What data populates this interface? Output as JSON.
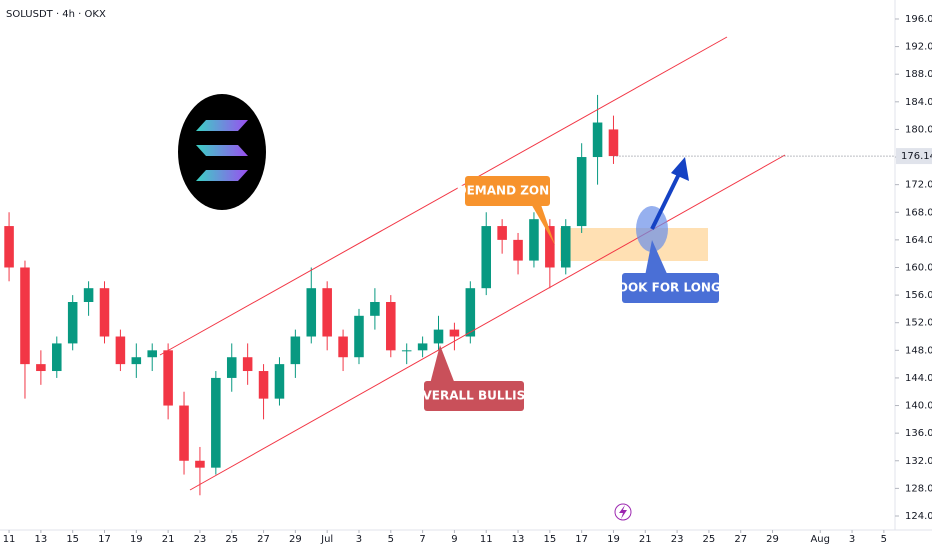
{
  "chart_data": {
    "type": "candlestick",
    "title": "SOLUSDT · 4h · OKX",
    "x": [
      11,
      12,
      13,
      14,
      15,
      16,
      17,
      18,
      19,
      20,
      21,
      22,
      23,
      24,
      25,
      26,
      27,
      28,
      29,
      30,
      31,
      32,
      33,
      34,
      35,
      36,
      37,
      38,
      39,
      40,
      41,
      42,
      43,
      44,
      45,
      46,
      47,
      48,
      49
    ],
    "open": [
      166,
      160,
      146,
      145,
      149,
      155,
      157,
      150,
      146,
      147,
      148,
      140,
      132,
      131,
      144,
      147,
      145,
      141,
      146,
      150,
      157,
      150,
      147,
      153,
      155,
      148,
      148,
      149,
      151,
      150,
      157,
      166,
      164,
      161,
      166,
      160,
      166,
      176,
      180
    ],
    "high": [
      168,
      161,
      148,
      150,
      156,
      158,
      158,
      151,
      149,
      149,
      149,
      142,
      134,
      145,
      149,
      149,
      146,
      147,
      151,
      160,
      158,
      151,
      154,
      157,
      156,
      149,
      150,
      153,
      152,
      158,
      168,
      167,
      165,
      168,
      167,
      167,
      178,
      185,
      182
    ],
    "low": [
      158,
      141,
      143,
      144,
      148,
      153,
      149,
      145,
      144,
      145,
      138,
      130,
      127,
      130,
      142,
      143,
      138,
      140,
      144,
      149,
      148,
      145,
      146,
      151,
      147,
      146,
      147,
      148,
      148,
      149,
      156,
      162,
      159,
      160,
      157,
      159,
      165,
      172,
      175
    ],
    "close": [
      160,
      146,
      145,
      149,
      155,
      157,
      150,
      146,
      147,
      148,
      140,
      132,
      131,
      144,
      147,
      145,
      141,
      146,
      150,
      157,
      150,
      147,
      153,
      155,
      148,
      148,
      149,
      151,
      150,
      157,
      166,
      164,
      161,
      167,
      160,
      166,
      176,
      181,
      176.14
    ],
    "up_color": "#089981",
    "down_color": "#f23645",
    "last_price": 176.14,
    "xlim": [
      10.43,
      66.7
    ],
    "xticks": [
      11,
      13,
      15,
      17,
      19,
      21,
      23,
      25,
      27,
      29,
      {
        "value": 31,
        "label": "Jul"
      },
      {
        "value": 33,
        "label": "3"
      },
      {
        "value": 35,
        "label": "5"
      },
      {
        "value": 37,
        "label": "7"
      },
      {
        "value": 39,
        "label": "9"
      },
      {
        "value": 41,
        "label": "11"
      },
      {
        "value": 43,
        "label": "13"
      },
      {
        "value": 45,
        "label": "15"
      },
      {
        "value": 47,
        "label": "17"
      },
      {
        "value": 49,
        "label": "19"
      },
      {
        "value": 51,
        "label": "21"
      },
      {
        "value": 53,
        "label": "23"
      },
      {
        "value": 55,
        "label": "25"
      },
      {
        "value": 57,
        "label": "27"
      },
      {
        "value": 59,
        "label": "29"
      },
      {
        "value": 62,
        "label": "Aug"
      },
      {
        "value": 64,
        "label": "3"
      },
      {
        "value": 66,
        "label": "5"
      }
    ],
    "ylim": [
      121.97,
      198.75
    ],
    "yticks": [
      {
        "value": 124,
        "label": "124.00"
      },
      {
        "value": 128,
        "label": "128.00"
      },
      {
        "value": 132,
        "label": "132.00"
      },
      {
        "value": 136,
        "label": "136.00"
      },
      {
        "value": 140,
        "label": "140.00"
      },
      {
        "value": 144,
        "label": "144.00"
      },
      {
        "value": 148,
        "label": "148.00"
      },
      {
        "value": 152,
        "label": "152.00"
      },
      {
        "value": 156,
        "label": "156.00"
      },
      {
        "value": 160,
        "label": "160.00"
      },
      {
        "value": 164,
        "label": "164.00"
      },
      {
        "value": 168,
        "label": "168.00"
      },
      {
        "value": 172,
        "label": "172.00"
      },
      {
        "value": 176,
        "label": "176.00"
      },
      {
        "value": 180,
        "label": "180.00"
      },
      {
        "value": 184,
        "label": "184.00"
      },
      {
        "value": 188,
        "label": "188.00"
      },
      {
        "value": 192,
        "label": "192.00"
      },
      {
        "value": 196,
        "label": "196.00"
      }
    ],
    "grid": false,
    "annotations": [
      "DEMAND ZONE",
      "LOOK FOR LONGS",
      "OVERALL BULLISH"
    ]
  }
}
